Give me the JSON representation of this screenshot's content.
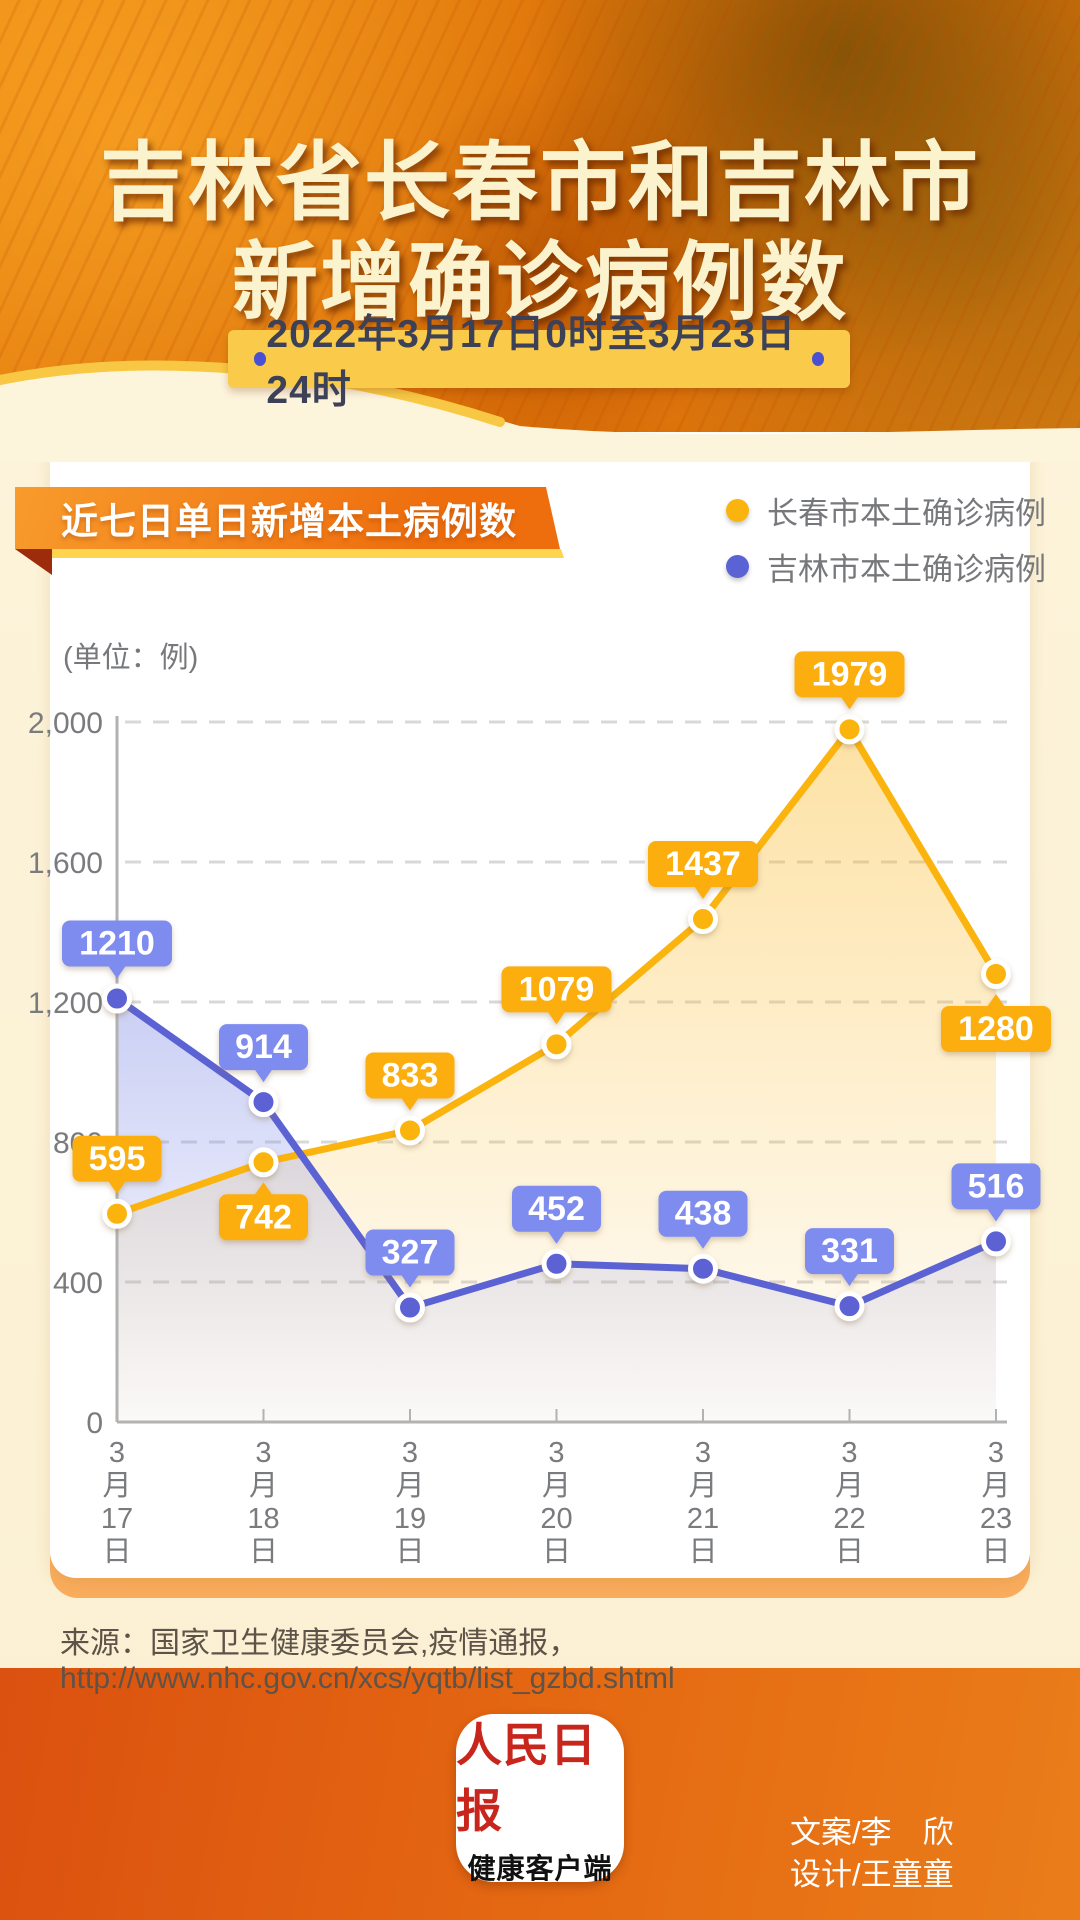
{
  "header": {
    "title_line1": "吉林省长春市和吉林市",
    "title_line2": "新增确诊病例数",
    "date_range": "2022年3月17日0时至3月23日24时"
  },
  "card": {
    "ribbon_title": "近七日单日新增本土病例数",
    "unit_label": "(单位：例)"
  },
  "chart_data": {
    "type": "line",
    "title": "近七日单日新增本土病例数",
    "unit": "(单位：例)",
    "categories": [
      "3月17日",
      "3月18日",
      "3月19日",
      "3月20日",
      "3月21日",
      "3月22日",
      "3月23日"
    ],
    "series": [
      {
        "name": "长春市本土确诊病例",
        "color": "#FBB30E",
        "badge_color": "#FBAE10",
        "values": [
          595,
          742,
          833,
          1079,
          1437,
          1979,
          1280
        ],
        "label_side": [
          "above",
          "below",
          "above",
          "above",
          "above",
          "above",
          "below"
        ]
      },
      {
        "name": "吉林市本土确诊病例",
        "color": "#5B62D3",
        "badge_color": "#7E8CF0",
        "values": [
          1210,
          914,
          327,
          452,
          438,
          331,
          516
        ],
        "label_side": [
          "above",
          "above",
          "above",
          "above",
          "above",
          "above",
          "above"
        ]
      }
    ],
    "ylim": [
      0,
      2000
    ],
    "yticks": [
      [
        0,
        "0"
      ],
      [
        400,
        "400"
      ],
      [
        800,
        "800"
      ],
      [
        1200,
        "1,200"
      ],
      [
        1600,
        "1,600"
      ],
      [
        2000,
        "2,000"
      ]
    ],
    "grid": "dashed-horizontal",
    "legend_position": "top-right"
  },
  "source": {
    "text": "来源：国家卫生健康委员会,疫情通报，http://www.nhc.gov.cn/xcs/yqtb/list_gzbd.shtml"
  },
  "footer": {
    "logo_line1": "人民日报",
    "logo_line2": "健康客户端",
    "credit_line1": "文案/李　欣",
    "credit_line2": "设计/王童童"
  },
  "theme": {
    "header_orange": "#E07E12",
    "date_badge_yellow": "#FACB4B",
    "date_badge_dot_blue": "#4A50D3",
    "ribbon_orange": "#EE6E0E",
    "ribbon_strip_yellow": "#FFD44F",
    "ribbon_fold_red": "#9C2C0C",
    "page_cream": "#FDF4DC",
    "footer_orange": "#DB5110",
    "logo_red": "#C8251C",
    "axis_gray": "#B2B2B2",
    "grid_gray": "#D8D8D8"
  }
}
